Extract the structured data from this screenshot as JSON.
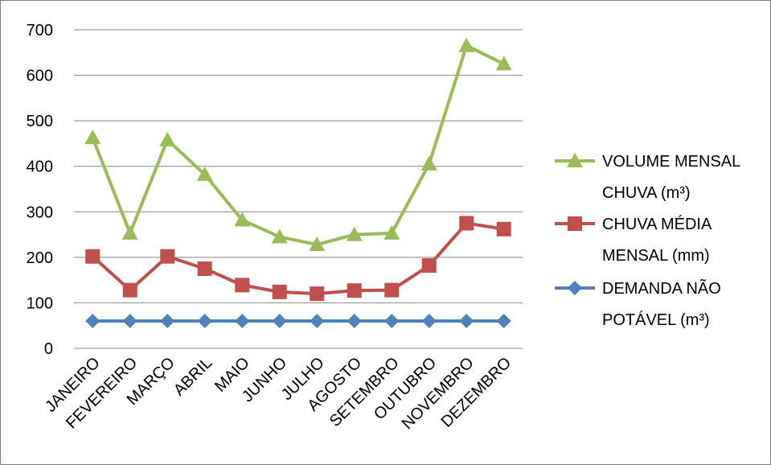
{
  "chart_data": {
    "type": "line",
    "title": "",
    "xlabel": "",
    "ylabel": "",
    "categories": [
      "JANEIRO",
      "FEVEREIRO",
      "MARÇO",
      "ABRIL",
      "MAIO",
      "JUNHO",
      "JULHO",
      "AGOSTO",
      "SETEMBRO",
      "OUTUBRO",
      "NOVEMBRO",
      "DEZEMBRO"
    ],
    "ylim": [
      0,
      700
    ],
    "yticks": [
      0,
      100,
      200,
      300,
      400,
      500,
      600,
      700
    ],
    "grid": true,
    "legend_position": "right",
    "series": [
      {
        "name_lines": [
          "VOLUME MENSAL",
          "CHUVA (m³)"
        ],
        "color": "#9bbb59",
        "marker": "triangle",
        "values": [
          463,
          253,
          458,
          382,
          282,
          245,
          228,
          250,
          253,
          405,
          665,
          625
        ]
      },
      {
        "name_lines": [
          "CHUVA MÉDIA",
          "MENSAL (mm)"
        ],
        "color": "#c0504d",
        "marker": "square",
        "values": [
          202,
          128,
          202,
          175,
          139,
          124,
          120,
          127,
          128,
          182,
          275,
          262
        ]
      },
      {
        "name_lines": [
          "DEMANDA NÃO",
          "POTÁVEL (m³)"
        ],
        "color": "#4f81bd",
        "marker": "diamond",
        "values": [
          60,
          60,
          60,
          60,
          60,
          60,
          60,
          60,
          60,
          60,
          60,
          60
        ]
      }
    ]
  }
}
